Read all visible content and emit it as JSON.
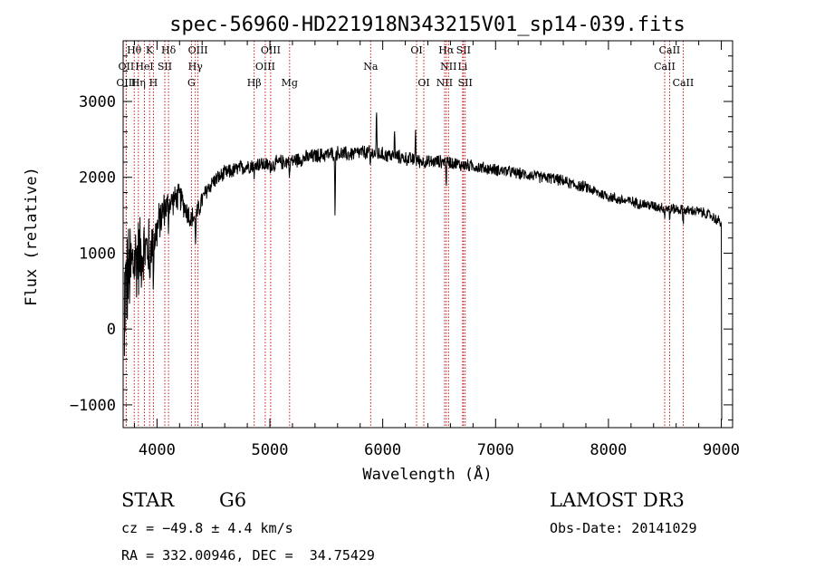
{
  "chart_data": {
    "type": "line",
    "title": "spec-56960-HD221918N343215V01_sp14-039.fits",
    "xlabel": "Wavelength (Å)",
    "ylabel": "Flux (relative)",
    "xlim": [
      3700,
      9100
    ],
    "ylim": [
      -1300,
      3800
    ],
    "xticks": [
      4000,
      5000,
      6000,
      7000,
      8000,
      9000
    ],
    "yticks": [
      -1000,
      0,
      1000,
      2000,
      3000
    ],
    "tick_labels": {
      "x": [
        "4000",
        "5000",
        "6000",
        "7000",
        "8000",
        "9000"
      ],
      "y": [
        "−1000",
        "0",
        "1000",
        "2000",
        "3000"
      ]
    },
    "continuum": {
      "x": [
        3700,
        3750,
        3800,
        3850,
        3900,
        3950,
        4000,
        4050,
        4100,
        4150,
        4200,
        4250,
        4300,
        4350,
        4400,
        4450,
        4500,
        4600,
        4700,
        4800,
        4900,
        5000,
        5100,
        5200,
        5300,
        5400,
        5500,
        5600,
        5700,
        5800,
        5900,
        6000,
        6100,
        6200,
        6300,
        6400,
        6500,
        6600,
        6700,
        6800,
        6900,
        7000,
        7100,
        7200,
        7300,
        7400,
        7500,
        7600,
        7700,
        7800,
        7900,
        8000,
        8100,
        8200,
        8300,
        8400,
        8500,
        8600,
        8700,
        8800,
        8900,
        9000
      ],
      "y": [
        400,
        700,
        900,
        1000,
        1050,
        1100,
        1300,
        1550,
        1650,
        1700,
        1750,
        1600,
        1450,
        1500,
        1700,
        1850,
        1950,
        2050,
        2100,
        2150,
        2180,
        2150,
        2200,
        2220,
        2250,
        2280,
        2300,
        2320,
        2300,
        2330,
        2320,
        2300,
        2280,
        2250,
        2220,
        2200,
        2210,
        2200,
        2160,
        2150,
        2120,
        2100,
        2080,
        2050,
        2030,
        2000,
        1990,
        1950,
        1900,
        1870,
        1800,
        1750,
        1700,
        1680,
        1650,
        1620,
        1600,
        1580,
        1560,
        1550,
        1500,
        1400
      ]
    },
    "noise_amplitude": [
      [
        3700,
        900
      ],
      [
        3800,
        700
      ],
      [
        3900,
        500
      ],
      [
        4000,
        350
      ],
      [
        4100,
        220
      ],
      [
        4300,
        180
      ],
      [
        4500,
        120
      ],
      [
        6000,
        110
      ],
      [
        7000,
        90
      ],
      [
        8500,
        80
      ],
      [
        9000,
        80
      ]
    ],
    "absorption_features": [
      [
        3934,
        -600
      ],
      [
        3968,
        -500
      ],
      [
        4101,
        -300
      ],
      [
        4340,
        -400
      ],
      [
        4861,
        -250
      ],
      [
        5175,
        -250
      ],
      [
        5577,
        -900
      ],
      [
        5890,
        -200
      ],
      [
        6563,
        -300
      ],
      [
        8498,
        -150
      ],
      [
        8542,
        -200
      ],
      [
        8662,
        -200
      ]
    ],
    "emission_spikes": [
      [
        5945,
        600
      ],
      [
        6105,
        400
      ],
      [
        6290,
        450
      ]
    ],
    "edge_drops": [
      [
        3708,
        -350
      ],
      [
        9005,
        -1200
      ]
    ],
    "series_name": "flux",
    "line_markers": [
      {
        "label": "Hθ",
        "x": 3798,
        "row": 0
      },
      {
        "label": "OII",
        "x": 3727,
        "row": 1
      },
      {
        "label": "OIII",
        "x": 3727,
        "row": 2
      },
      {
        "label": "K",
        "x": 3934,
        "row": 0
      },
      {
        "label": "HeI",
        "x": 3889,
        "row": 1
      },
      {
        "label": "Hη",
        "x": 3835,
        "row": 2
      },
      {
        "label": "Hδ",
        "x": 4102,
        "row": 0
      },
      {
        "label": "SII",
        "x": 4069,
        "row": 1
      },
      {
        "label": "H",
        "x": 3968,
        "row": 2
      },
      {
        "label": "OIII",
        "x": 4363,
        "row": 0
      },
      {
        "label": "Hγ",
        "x": 4340,
        "row": 1
      },
      {
        "label": "G",
        "x": 4305,
        "row": 2
      },
      {
        "label": "OIII",
        "x": 5007,
        "row": 0
      },
      {
        "label": "OIII",
        "x": 4959,
        "row": 1
      },
      {
        "label": "Hβ",
        "x": 4861,
        "row": 2
      },
      {
        "label": "Mg",
        "x": 5175,
        "row": 2
      },
      {
        "label": "Na",
        "x": 5893,
        "row": 1
      },
      {
        "label": "OI",
        "x": 6300,
        "row": 0
      },
      {
        "label": "OI",
        "x": 6364,
        "row": 2
      },
      {
        "label": "Hα",
        "x": 6563,
        "row": 0
      },
      {
        "label": "SII",
        "x": 6716,
        "row": 0
      },
      {
        "label": "NII",
        "x": 6583,
        "row": 1
      },
      {
        "label": "Li",
        "x": 6708,
        "row": 1
      },
      {
        "label": "NII",
        "x": 6548,
        "row": 2
      },
      {
        "label": "SII",
        "x": 6731,
        "row": 2
      },
      {
        "label": "CaII",
        "x": 8542,
        "row": 0
      },
      {
        "label": "CaII",
        "x": 8498,
        "row": 1
      },
      {
        "label": "CaII",
        "x": 8662,
        "row": 2
      }
    ]
  },
  "info": {
    "object_class": "STAR",
    "subclass": "G6",
    "survey": "LAMOST DR3",
    "redshift": "cz = −49.8 ± 4.4 km/s",
    "obs_date": "Obs-Date: 20141029",
    "coords": "RA = 332.00946, DEC =  34.75429"
  },
  "colors": {
    "spectrum": "#000000",
    "markers": "#c00000",
    "axes": "#000000"
  }
}
